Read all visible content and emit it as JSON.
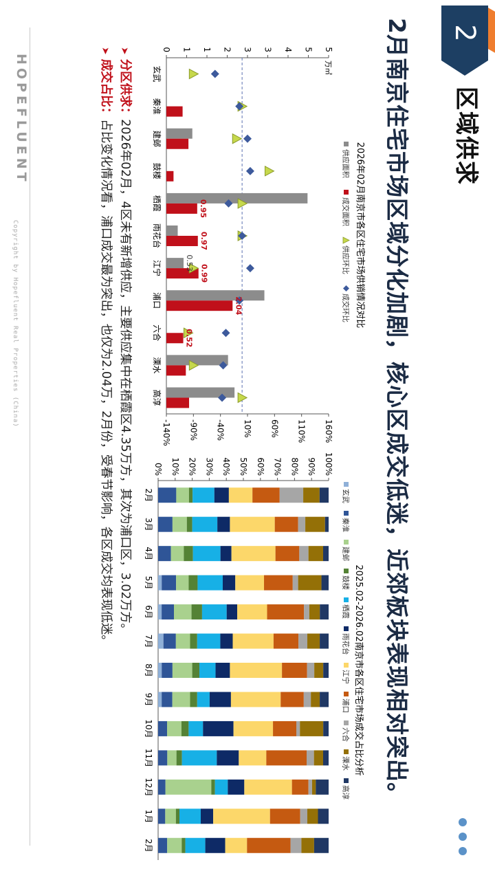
{
  "section": {
    "number": "2",
    "title": "区域供求"
  },
  "main_title": "2月南京住宅市场区域分化加剧，核心区成交低迷，近郊板块表现相对突出。",
  "notes": [
    {
      "label": "分区供求：",
      "text": "2026年02月，4区未有新增供应，主要供应集中在栖霞区4.35万方，其次为浦口区，3.02万方。"
    },
    {
      "label": "成交占比：",
      "text": "占比变化情况看，浦口成交最为突出，也仅为2.04万，2月份，受春节影响，各区成交均表现低迷。"
    }
  ],
  "brand": "HOPEFLUENT",
  "copyright": "Copyright by Hopefluent Real Properties (China)",
  "colors": {
    "supply": "#8c8c8c",
    "deal": "#c0101a",
    "supply_ratio_fill": "#c6d84c",
    "deal_ratio": "#3d5a9c",
    "brand_navy": "#1d3f63",
    "accent_orange": "#ef7d2e"
  },
  "chart_data": [
    {
      "type": "bar",
      "title": "2026年02月南京市各区住宅市场供销情况对比",
      "unit": "万㎡",
      "categories": [
        "玄武",
        "秦淮",
        "建邺",
        "鼓楼",
        "栖霞",
        "雨花台",
        "江宁",
        "浦口",
        "六合",
        "溧水",
        "高淳"
      ],
      "series": [
        {
          "name": "供应面积",
          "kind": "bar",
          "axis": "left",
          "values": [
            0,
            0,
            0.8,
            0,
            4.35,
            0.35,
            0.53,
            3.02,
            0,
            1.9,
            2.1
          ]
        },
        {
          "name": "成交面积",
          "kind": "bar",
          "axis": "left",
          "values": [
            0,
            0.5,
            0.68,
            0.22,
            0.95,
            0.97,
            0.99,
            2.04,
            0.52,
            0.6,
            0.7
          ]
        },
        {
          "name": "供应环比",
          "kind": "marker-triangle",
          "axis": "right",
          "values": [
            -90,
            0,
            -10,
            50,
            0,
            0,
            -90,
            null,
            -100,
            -90,
            0
          ]
        },
        {
          "name": "成交环比",
          "kind": "marker-diamond",
          "axis": "right",
          "values": [
            -50,
            -5,
            10,
            15,
            -25,
            0,
            15,
            -5,
            -30,
            -35,
            -37
          ]
        }
      ],
      "data_labels": {
        "栖霞": "0.95",
        "雨花台": "0.97",
        "江宁": "0.99",
        "浦口": "2.04",
        "六合": "0.52",
        "江宁_supply": "0.53"
      },
      "left_axis": {
        "range": [
          0,
          5
        ],
        "ticks": [
          "0",
          "1",
          "1",
          "2",
          "3",
          "3",
          "4",
          "5",
          "5"
        ]
      },
      "right_axis": {
        "range": [
          -140,
          160
        ],
        "ticks": [
          "-140%",
          "-90%",
          "-40%",
          "10%",
          "60%",
          "110%",
          "160%"
        ]
      },
      "reference_line": {
        "axis": "right",
        "value": 0
      },
      "legend": "top"
    },
    {
      "type": "bar",
      "stacked": "percent",
      "title": "2025.02-2026.02南京市各区住宅市场成交占比分析",
      "categories": [
        "2月",
        "3月",
        "4月",
        "5月",
        "6月",
        "7月",
        "8月",
        "9月",
        "10月",
        "11月",
        "12月",
        "1月",
        "2月"
      ],
      "y_ticks": [
        "0%",
        "10%",
        "20%",
        "30%",
        "40%",
        "50%",
        "60%",
        "70%",
        "80%",
        "90%",
        "100%"
      ],
      "legend": "top",
      "series": [
        {
          "name": "玄武",
          "color": "#8fb0d8",
          "values": [
            0,
            0,
            0,
            2,
            2,
            3,
            2,
            2,
            0,
            0,
            0,
            0,
            0
          ]
        },
        {
          "name": "秦淮",
          "color": "#2f5597",
          "values": [
            10,
            8,
            7,
            8,
            7,
            7,
            6,
            6,
            5,
            5,
            4,
            4,
            5
          ]
        },
        {
          "name": "建邺",
          "color": "#a9d18e",
          "values": [
            7,
            8,
            7,
            7,
            10,
            8,
            11,
            10,
            8,
            5,
            25,
            6,
            8
          ]
        },
        {
          "name": "鼓楼",
          "color": "#548235",
          "values": [
            2,
            3,
            5,
            5,
            6,
            4,
            4,
            4,
            4,
            3,
            2,
            2,
            2
          ]
        },
        {
          "name": "栖霞",
          "color": "#17b0e6",
          "values": [
            12,
            14,
            15,
            14,
            14,
            13,
            9,
            7,
            8,
            19,
            7,
            12,
            11
          ]
        },
        {
          "name": "雨花台",
          "color": "#0e2a66",
          "values": [
            8,
            7,
            6,
            7,
            6,
            7,
            8,
            12,
            17,
            12,
            9,
            7,
            11
          ]
        },
        {
          "name": "江宁",
          "color": "#fcd76a",
          "values": [
            13,
            25,
            24,
            16,
            17,
            23,
            29,
            28,
            22,
            15,
            26,
            32,
            12
          ]
        },
        {
          "name": "浦口",
          "color": "#c55a11",
          "values": [
            15,
            13,
            13,
            16,
            21,
            14,
            14,
            13,
            13,
            22,
            9,
            17,
            24
          ]
        },
        {
          "name": "六合",
          "color": "#a6a6a6",
          "values": [
            13,
            4,
            5,
            3,
            3,
            5,
            4,
            4,
            2,
            4,
            2,
            4,
            6
          ]
        },
        {
          "name": "溧水",
          "color": "#947007",
          "values": [
            9,
            11,
            8,
            13,
            6,
            7,
            5,
            5,
            13,
            5,
            2,
            6,
            7
          ]
        },
        {
          "name": "高淳",
          "color": "#203864",
          "values": [
            5,
            2,
            3,
            4,
            5,
            5,
            3,
            5,
            3,
            3,
            7,
            6,
            8
          ]
        }
      ]
    }
  ]
}
